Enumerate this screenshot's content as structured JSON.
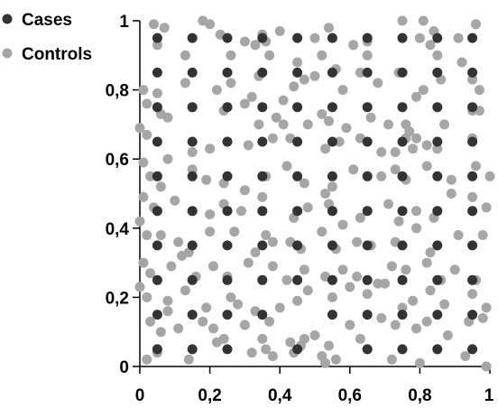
{
  "chart_data": {
    "type": "scatter",
    "title": "",
    "xlabel": "",
    "ylabel": "",
    "xlim": [
      0,
      1
    ],
    "ylim": [
      0,
      1
    ],
    "x_ticks": [
      0,
      0.2,
      0.4,
      0.6,
      0.8,
      1
    ],
    "y_ticks": [
      0,
      0.2,
      0.4,
      0.6,
      0.8,
      1
    ],
    "x_tick_labels": [
      "0",
      "0,2",
      "0,4",
      "0,6",
      "0,8",
      "1"
    ],
    "y_tick_labels": [
      "0",
      "0,2",
      "0,4",
      "0,6",
      "0,8",
      "1"
    ],
    "grid": false,
    "legend_position": "top-left",
    "series": [
      {
        "name": "Cases",
        "color": "#333333",
        "grid_spacing": 0.1,
        "grid_start": 0.05,
        "grid_count": 10,
        "missing_points": [
          [
            0.35,
            0.05
          ],
          [
            0.45,
            0.15
          ],
          [
            0.55,
            0.05
          ]
        ]
      },
      {
        "name": "Controls",
        "color": "#a6a6a6",
        "points": [
          [
            0.04,
            0.99
          ],
          [
            0.07,
            0.98
          ],
          [
            0.18,
            1.0
          ],
          [
            0.2,
            0.99
          ],
          [
            0.23,
            0.96
          ],
          [
            0.26,
            0.9
          ],
          [
            0.3,
            0.94
          ],
          [
            0.33,
            0.93
          ],
          [
            0.35,
            0.96
          ],
          [
            0.4,
            0.97
          ],
          [
            0.5,
            0.95
          ],
          [
            0.54,
            0.98
          ],
          [
            0.65,
            0.94
          ],
          [
            0.75,
            1.0
          ],
          [
            0.81,
            1.0
          ],
          [
            0.84,
            0.97
          ],
          [
            0.91,
            0.95
          ],
          [
            0.96,
            0.99
          ],
          [
            0.05,
            0.93
          ],
          [
            0.13,
            0.9
          ],
          [
            0.36,
            0.94
          ],
          [
            0.37,
            0.9
          ],
          [
            0.45,
            0.88
          ],
          [
            0.52,
            0.9
          ],
          [
            0.56,
            0.86
          ],
          [
            0.61,
            0.93
          ],
          [
            0.65,
            0.9
          ],
          [
            0.8,
            0.95
          ],
          [
            0.83,
            0.93
          ],
          [
            0.85,
            0.9
          ],
          [
            0.92,
            0.88
          ],
          [
            0.01,
            0.8
          ],
          [
            0.05,
            0.79
          ],
          [
            0.13,
            0.82
          ],
          [
            0.22,
            0.8
          ],
          [
            0.26,
            0.82
          ],
          [
            0.32,
            0.78
          ],
          [
            0.34,
            0.84
          ],
          [
            0.41,
            0.77
          ],
          [
            0.44,
            0.81
          ],
          [
            0.47,
            0.83
          ],
          [
            0.5,
            0.84
          ],
          [
            0.58,
            0.8
          ],
          [
            0.63,
            0.85
          ],
          [
            0.68,
            0.82
          ],
          [
            0.74,
            0.85
          ],
          [
            0.79,
            0.78
          ],
          [
            0.81,
            0.8
          ],
          [
            0.86,
            0.83
          ],
          [
            0.95,
            0.83
          ],
          [
            0.97,
            0.8
          ],
          [
            0.02,
            0.76
          ],
          [
            0.06,
            0.73
          ],
          [
            0.08,
            0.72
          ],
          [
            0.15,
            0.75
          ],
          [
            0.24,
            0.74
          ],
          [
            0.3,
            0.76
          ],
          [
            0.39,
            0.72
          ],
          [
            0.41,
            0.7
          ],
          [
            0.48,
            0.7
          ],
          [
            0.52,
            0.73
          ],
          [
            0.54,
            0.71
          ],
          [
            0.59,
            0.69
          ],
          [
            0.66,
            0.72
          ],
          [
            0.71,
            0.7
          ],
          [
            0.76,
            0.7
          ],
          [
            0.77,
            0.68
          ],
          [
            0.79,
            0.66
          ],
          [
            0.82,
            0.64
          ],
          [
            0.87,
            0.7
          ],
          [
            0.95,
            0.74
          ],
          [
            0.97,
            0.74
          ],
          [
            0.0,
            0.69
          ],
          [
            0.02,
            0.67
          ],
          [
            0.08,
            0.6
          ],
          [
            0.15,
            0.62
          ],
          [
            0.2,
            0.63
          ],
          [
            0.25,
            0.65
          ],
          [
            0.31,
            0.64
          ],
          [
            0.34,
            0.7
          ],
          [
            0.38,
            0.66
          ],
          [
            0.43,
            0.66
          ],
          [
            0.53,
            0.63
          ],
          [
            0.57,
            0.65
          ],
          [
            0.63,
            0.66
          ],
          [
            0.69,
            0.62
          ],
          [
            0.73,
            0.62
          ],
          [
            0.76,
            0.66
          ],
          [
            0.78,
            0.63
          ],
          [
            0.85,
            0.63
          ],
          [
            0.95,
            0.66
          ],
          [
            0.01,
            0.59
          ],
          [
            0.03,
            0.55
          ],
          [
            0.06,
            0.52
          ],
          [
            0.15,
            0.57
          ],
          [
            0.19,
            0.54
          ],
          [
            0.24,
            0.53
          ],
          [
            0.3,
            0.51
          ],
          [
            0.36,
            0.55
          ],
          [
            0.42,
            0.58
          ],
          [
            0.47,
            0.53
          ],
          [
            0.53,
            0.5
          ],
          [
            0.55,
            0.52
          ],
          [
            0.61,
            0.57
          ],
          [
            0.69,
            0.55
          ],
          [
            0.73,
            0.57
          ],
          [
            0.76,
            0.54
          ],
          [
            0.82,
            0.58
          ],
          [
            0.89,
            0.54
          ],
          [
            0.96,
            0.58
          ],
          [
            1.0,
            0.55
          ],
          [
            0.01,
            0.49
          ],
          [
            0.04,
            0.46
          ],
          [
            0.1,
            0.48
          ],
          [
            0.2,
            0.44
          ],
          [
            0.24,
            0.47
          ],
          [
            0.29,
            0.45
          ],
          [
            0.35,
            0.49
          ],
          [
            0.44,
            0.43
          ],
          [
            0.48,
            0.46
          ],
          [
            0.54,
            0.47
          ],
          [
            0.58,
            0.41
          ],
          [
            0.63,
            0.43
          ],
          [
            0.71,
            0.47
          ],
          [
            0.74,
            0.42
          ],
          [
            0.79,
            0.45
          ],
          [
            0.84,
            0.43
          ],
          [
            0.89,
            0.5
          ],
          [
            0.95,
            0.49
          ],
          [
            0.99,
            0.46
          ],
          [
            0.0,
            0.42
          ],
          [
            0.02,
            0.38
          ],
          [
            0.06,
            0.38
          ],
          [
            0.11,
            0.36
          ],
          [
            0.14,
            0.33
          ],
          [
            0.2,
            0.39
          ],
          [
            0.27,
            0.39
          ],
          [
            0.33,
            0.33
          ],
          [
            0.36,
            0.38
          ],
          [
            0.38,
            0.36
          ],
          [
            0.43,
            0.36
          ],
          [
            0.46,
            0.34
          ],
          [
            0.52,
            0.39
          ],
          [
            0.56,
            0.34
          ],
          [
            0.62,
            0.36
          ],
          [
            0.66,
            0.35
          ],
          [
            0.73,
            0.36
          ],
          [
            0.79,
            0.4
          ],
          [
            0.83,
            0.33
          ],
          [
            0.91,
            0.38
          ],
          [
            0.98,
            0.38
          ],
          [
            0.01,
            0.3
          ],
          [
            0.03,
            0.27
          ],
          [
            0.09,
            0.29
          ],
          [
            0.12,
            0.32
          ],
          [
            0.16,
            0.26
          ],
          [
            0.21,
            0.29
          ],
          [
            0.25,
            0.26
          ],
          [
            0.31,
            0.3
          ],
          [
            0.38,
            0.29
          ],
          [
            0.42,
            0.25
          ],
          [
            0.47,
            0.28
          ],
          [
            0.53,
            0.26
          ],
          [
            0.58,
            0.28
          ],
          [
            0.62,
            0.26
          ],
          [
            0.68,
            0.24
          ],
          [
            0.72,
            0.29
          ],
          [
            0.76,
            0.28
          ],
          [
            0.82,
            0.3
          ],
          [
            0.86,
            0.25
          ],
          [
            0.9,
            0.28
          ],
          [
            0.96,
            0.25
          ],
          [
            0.0,
            0.23
          ],
          [
            0.02,
            0.2
          ],
          [
            0.08,
            0.19
          ],
          [
            0.13,
            0.22
          ],
          [
            0.19,
            0.17
          ],
          [
            0.26,
            0.2
          ],
          [
            0.28,
            0.18
          ],
          [
            0.33,
            0.16
          ],
          [
            0.4,
            0.17
          ],
          [
            0.45,
            0.19
          ],
          [
            0.48,
            0.22
          ],
          [
            0.55,
            0.2
          ],
          [
            0.6,
            0.23
          ],
          [
            0.65,
            0.21
          ],
          [
            0.7,
            0.24
          ],
          [
            0.75,
            0.17
          ],
          [
            0.78,
            0.19
          ],
          [
            0.83,
            0.22
          ],
          [
            0.87,
            0.18
          ],
          [
            0.95,
            0.21
          ],
          [
            0.99,
            0.17
          ],
          [
            0.03,
            0.13
          ],
          [
            0.06,
            0.1
          ],
          [
            0.08,
            0.16
          ],
          [
            0.11,
            0.11
          ],
          [
            0.18,
            0.13
          ],
          [
            0.21,
            0.11
          ],
          [
            0.24,
            0.08
          ],
          [
            0.3,
            0.12
          ],
          [
            0.35,
            0.08
          ],
          [
            0.37,
            0.13
          ],
          [
            0.43,
            0.07
          ],
          [
            0.47,
            0.08
          ],
          [
            0.5,
            0.09
          ],
          [
            0.54,
            0.06
          ],
          [
            0.6,
            0.12
          ],
          [
            0.63,
            0.08
          ],
          [
            0.69,
            0.14
          ],
          [
            0.73,
            0.12
          ],
          [
            0.79,
            0.11
          ],
          [
            0.82,
            0.13
          ],
          [
            0.88,
            0.09
          ],
          [
            0.94,
            0.13
          ],
          [
            0.98,
            0.14
          ],
          [
            0.02,
            0.02
          ],
          [
            0.05,
            0.04
          ],
          [
            0.14,
            0.02
          ],
          [
            0.22,
            0.07
          ],
          [
            0.32,
            0.04
          ],
          [
            0.36,
            0.05
          ],
          [
            0.38,
            0.03
          ],
          [
            0.44,
            0.04
          ],
          [
            0.46,
            0.06
          ],
          [
            0.52,
            0.03
          ],
          [
            0.53,
            0.01
          ],
          [
            0.56,
            0.02
          ],
          [
            0.65,
            0.05
          ],
          [
            0.72,
            0.02
          ],
          [
            0.8,
            0.01
          ],
          [
            0.93,
            0.03
          ],
          [
            0.99,
            0.0
          ]
        ]
      }
    ]
  }
}
